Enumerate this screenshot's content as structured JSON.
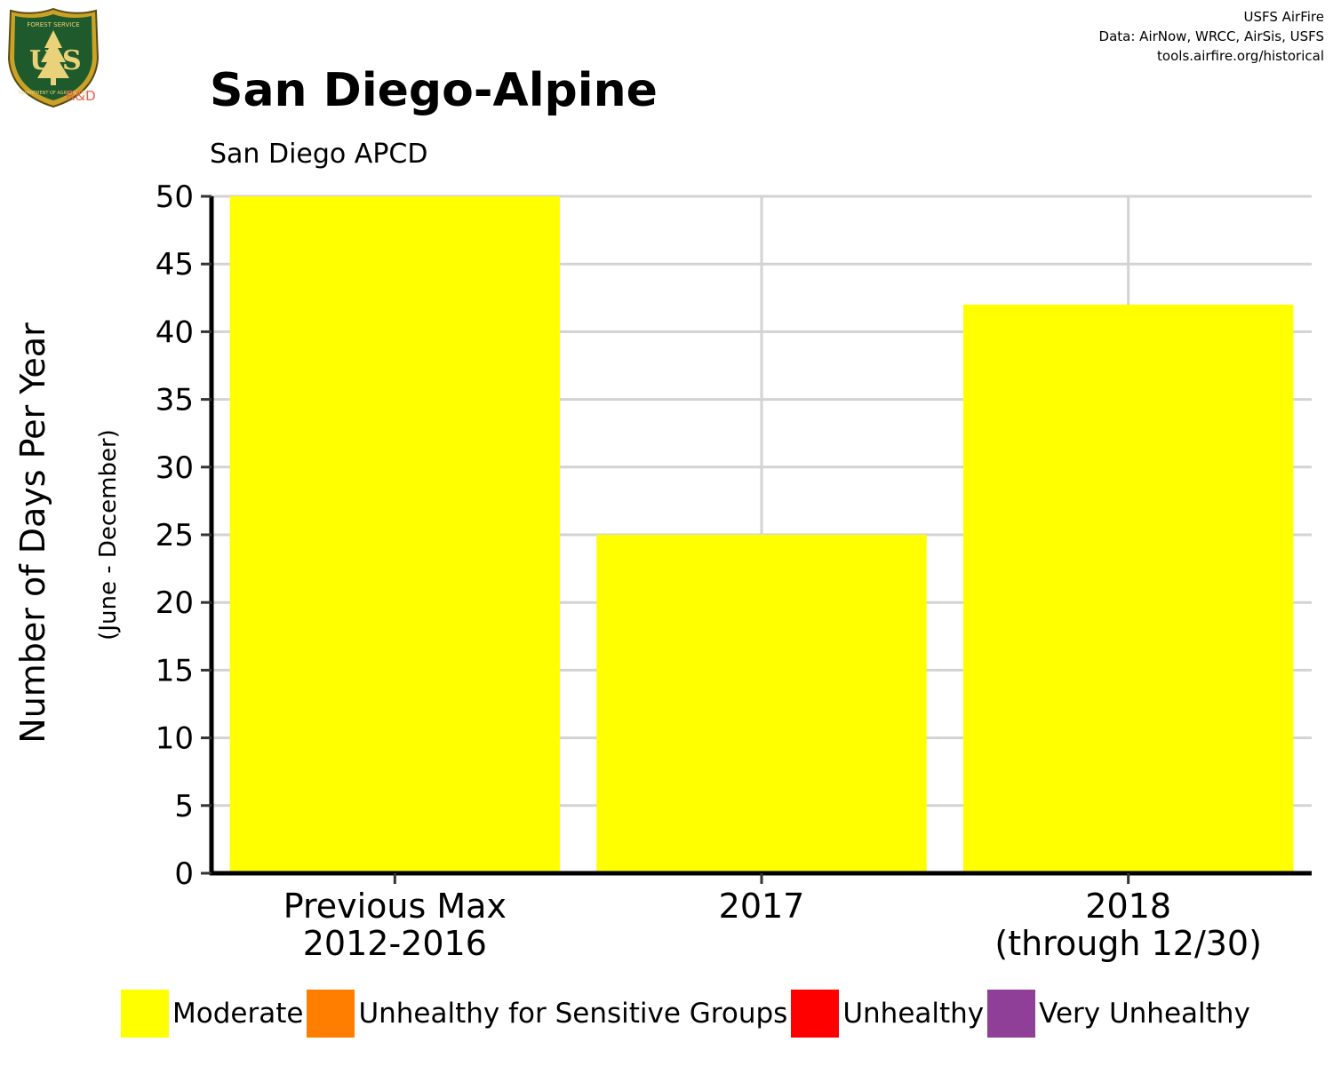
{
  "credits": {
    "line1": "USFS AirFire",
    "line2": "Data: AirNow, WRCC, AirSis, USFS",
    "line3": "tools.airfire.org/historical"
  },
  "logo": {
    "top_text": "FOREST SERVICE",
    "letters": "US",
    "bottom_text": "DEPARTMENT OF AGRICULTURE",
    "rd_label": "R&D",
    "icon": "usfs-shield-icon"
  },
  "chart_data": {
    "type": "bar",
    "title": "San Diego-Alpine",
    "subtitle": "San Diego APCD",
    "ylabel": "Number of Days Per Year",
    "ylabel_sub": "(June - December)",
    "xlabel": "",
    "categories": [
      [
        "Previous Max",
        "2012-2016"
      ],
      [
        "2017"
      ],
      [
        "2018",
        "(through 12/30)"
      ]
    ],
    "series": [
      {
        "name": "Moderate",
        "color": "#ffff00",
        "values": [
          50,
          25,
          42
        ]
      }
    ],
    "ylim": [
      0,
      50
    ],
    "yticks": [
      0,
      5,
      10,
      15,
      20,
      25,
      30,
      35,
      40,
      45,
      50
    ],
    "grid": true,
    "legend_position": "bottom",
    "legend": [
      {
        "label": "Moderate",
        "color": "#ffff00"
      },
      {
        "label": "Unhealthy for Sensitive Groups",
        "color": "#ff7e00"
      },
      {
        "label": "Unhealthy",
        "color": "#ff0000"
      },
      {
        "label": "Very Unhealthy",
        "color": "#8f3f97"
      }
    ]
  }
}
